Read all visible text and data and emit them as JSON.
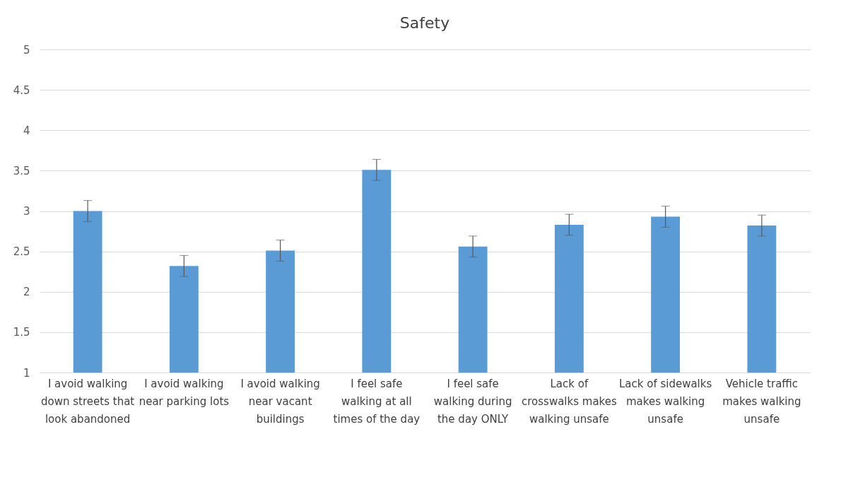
{
  "chart_data": {
    "type": "bar",
    "title": "Safety",
    "categories": [
      "I avoid walking down streets that look abandoned",
      "I avoid walking near parking lots",
      "I avoid walking near vacant buildings",
      "I feel safe walking at all times of the day",
      "I feel safe walking during the day ONLY",
      "Lack of crosswalks makes walking unsafe",
      "Lack of sidewalks makes walking unsafe",
      "Vehicle traffic makes walking unsafe"
    ],
    "values": [
      3.0,
      2.32,
      2.51,
      3.51,
      2.56,
      2.83,
      2.93,
      2.82
    ],
    "errors": [
      0.13,
      0.13,
      0.13,
      0.13,
      0.13,
      0.13,
      0.13,
      0.13
    ],
    "color": "#5b9bd5",
    "ylim": [
      1,
      5
    ],
    "yticks": [
      1,
      1.5,
      2,
      2.5,
      3,
      3.5,
      4,
      4.5,
      5
    ],
    "grid": "y"
  }
}
